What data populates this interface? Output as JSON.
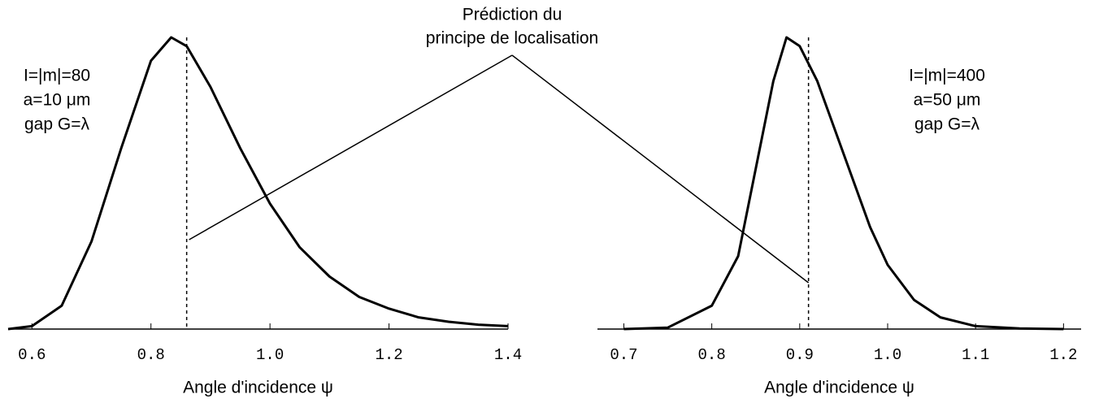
{
  "chart_data": [
    {
      "type": "line",
      "xlabel": "Angle d'incidence ψ",
      "annotations": [
        "I=|m|=80",
        "a=10 μm",
        "gap G=λ"
      ],
      "x": [
        0.56,
        0.6,
        0.65,
        0.7,
        0.75,
        0.8,
        0.834,
        0.86,
        0.9,
        0.95,
        1.0,
        1.05,
        1.1,
        1.15,
        1.2,
        1.25,
        1.3,
        1.35,
        1.4
      ],
      "series": [
        {
          "color": "#000000",
          "values": [
            0,
            0.01,
            0.08,
            0.3,
            0.62,
            0.92,
            1.0,
            0.97,
            0.83,
            0.62,
            0.43,
            0.28,
            0.18,
            0.11,
            0.07,
            0.04,
            0.025,
            0.015,
            0.01
          ]
        }
      ],
      "marker_x": 0.86,
      "xlim": [
        0.56,
        1.4
      ],
      "xticks": [
        0.6,
        0.8,
        {
          "value": 1,
          "label": "1.0"
        },
        1.2,
        1.4
      ],
      "ylim": [
        0,
        1
      ]
    },
    {
      "type": "line",
      "xlabel": "Angle d'incidence ψ",
      "annotations": [
        "I=|m|=400",
        "a=50 μm",
        "gap G=λ"
      ],
      "x": [
        0.7,
        0.75,
        0.8,
        0.83,
        0.85,
        0.87,
        0.885,
        0.9,
        0.92,
        0.95,
        0.98,
        1.0,
        1.03,
        1.06,
        1.1,
        1.15,
        1.2
      ],
      "series": [
        {
          "color": "#000000",
          "values": [
            0,
            0.005,
            0.08,
            0.25,
            0.55,
            0.85,
            1.0,
            0.97,
            0.85,
            0.6,
            0.35,
            0.22,
            0.1,
            0.04,
            0.01,
            0.002,
            0
          ]
        }
      ],
      "marker_x": 0.91,
      "xlim": [
        0.67,
        1.22
      ],
      "xticks": [
        0.7,
        0.8,
        0.9,
        {
          "value": 1,
          "label": "1.0"
        },
        1.1,
        1.2
      ],
      "ylim": [
        0,
        1
      ]
    }
  ],
  "annotation": [
    "Prédiction du",
    "principe de localisation"
  ]
}
